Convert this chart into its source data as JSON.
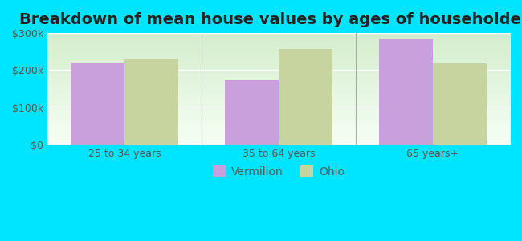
{
  "title": "Breakdown of mean house values by ages of householders",
  "categories": [
    "25 to 34 years",
    "35 to 64 years",
    "65 years+"
  ],
  "vermilion_values": [
    218000,
    175000,
    285000
  ],
  "ohio_values": [
    232000,
    258000,
    218000
  ],
  "vermilion_color": "#c9a0dc",
  "ohio_color": "#c8d4a0",
  "background_outer": "#00e5ff",
  "background_inner_top": "#d4edcc",
  "background_inner_bottom": "#f5fff5",
  "ylim": [
    0,
    300000
  ],
  "yticks": [
    0,
    100000,
    200000,
    300000
  ],
  "ytick_labels": [
    "$0",
    "$100k",
    "$200k",
    "$300k"
  ],
  "legend_labels": [
    "Vermilion",
    "Ohio"
  ],
  "bar_width": 0.35,
  "title_fontsize": 14,
  "tick_fontsize": 9,
  "legend_fontsize": 10
}
